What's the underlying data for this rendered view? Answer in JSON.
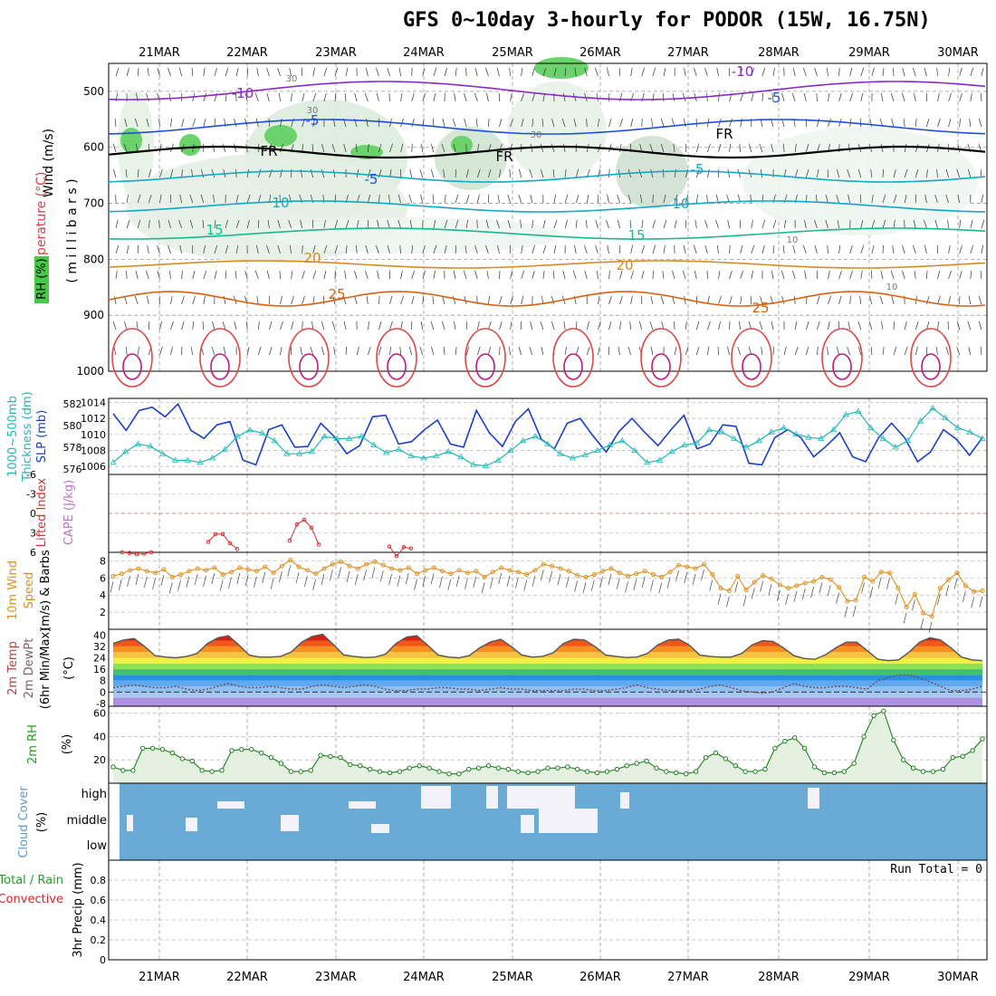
{
  "title": "GFS 0~10day 3-hourly for PODOR (15W, 16.75N)",
  "dates": [
    "21MAR",
    "22MAR",
    "23MAR",
    "24MAR",
    "25MAR",
    "26MAR",
    "27MAR",
    "28MAR",
    "29MAR",
    "30MAR"
  ],
  "colors": {
    "temp_neg": "#1f4fd8",
    "temp_zero": "#000000",
    "temp_cool": "#12a8c8",
    "temp_mild": "#18b890",
    "temp_warm": "#d88a20",
    "temp_hot": "#d86010",
    "slp": "#1a3fc8",
    "thickness": "#20b8b8",
    "lifted_index": "#d83030",
    "wind10m": "#e09020",
    "rh_line": "#208020",
    "cloud": "#6aaad6",
    "precip_total": "#20a020",
    "precip_conv": "#e02020"
  },
  "panels": {
    "upper": {
      "ylabel_wind": "Wind (m/s)",
      "ylabel_temp": "Temperature (°C)",
      "ylabel_rh": "RH (%)",
      "ylabel_units": "( m i l l i b a r s )",
      "pressure_ticks": [
        "500",
        "600",
        "700",
        "800",
        "900",
        "1000"
      ],
      "contour_labels": [
        "-10",
        "-10",
        "-5",
        "-5",
        "FR",
        "FR",
        "FR",
        "-5",
        "-5",
        "10",
        "10",
        "15",
        "15",
        "20",
        "20",
        "25",
        "25",
        "30",
        "30",
        "30",
        "10",
        "10"
      ]
    },
    "slp": {
      "ylabel_left1": "1000~500mb",
      "ylabel_left2": "Thickness (dm)",
      "ylabel_right": "SLP (mb)",
      "left_ticks": [
        "582",
        "580",
        "578",
        "576"
      ],
      "right_ticks": [
        "1014",
        "1012",
        "1010",
        "1008",
        "1006"
      ]
    },
    "cape": {
      "ylabel_left": "Lifted Index",
      "ylabel_right": "CAPE (J/kg)",
      "ticks": [
        "-6",
        "-3",
        "0",
        "3",
        "6"
      ]
    },
    "wind10m": {
      "ylabel_1": "10m Wind",
      "ylabel_2": "Speed",
      "ylabel_3": "(m/s) & Barbs",
      "ticks": [
        "8",
        "6",
        "4",
        "2"
      ]
    },
    "temp2m": {
      "ylabel_1": "2m Temp",
      "ylabel_2": "2m DewPt",
      "ylabel_3": "(6hr Min/Max)",
      "ylabel_unit": "(°C)",
      "ticks": [
        "40",
        "32",
        "24",
        "16",
        "8",
        "0",
        "-8"
      ]
    },
    "rh2m": {
      "ylabel": "2m RH",
      "unit": "(%)",
      "ticks": [
        "60",
        "40",
        "20"
      ]
    },
    "cloud": {
      "ylabel": "Cloud Cover",
      "unit": "(%)",
      "levels": [
        "high",
        "middle",
        "low"
      ]
    },
    "precip": {
      "ylabel_total": "Total / Rain",
      "ylabel_conv": "Convective",
      "ylabel_axis": "3hr Precip (mm)",
      "run_total": "Run Total = 0",
      "ticks": [
        "0.8",
        "0.6",
        "0.4",
        "0.2",
        "0"
      ]
    }
  },
  "chart_data": [
    {
      "type": "line",
      "title": "1000~500mb Thickness (dm) and SLP (mb)",
      "series": [
        {
          "name": "SLP (mb)",
          "axis": "right",
          "values": [
            1012.6,
            1010.5,
            1013,
            1013.4,
            1012.2,
            1013.8,
            1010.5,
            1009.5,
            1011.2,
            1011.6,
            1006.8,
            1006.2,
            1010.6,
            1011.2,
            1008.4,
            1008.5,
            1011.4,
            1009.8,
            1007.6,
            1008.6,
            1012.2,
            1012.4,
            1008.8,
            1009.1,
            1010.6,
            1011.8,
            1008.8,
            1008.4,
            1013,
            1010.2,
            1008.5,
            1011.6,
            1013.2,
            1009.4,
            1008.2,
            1011.4,
            1012,
            1009.8,
            1007.8,
            1010.4,
            1012,
            1010.2,
            1008.6,
            1010.6,
            1012.4,
            1008.2,
            1008.8,
            1011.2,
            1011,
            1006.4,
            1006.2,
            1009.6,
            1010.6,
            1009.6,
            1007.2,
            1008.6,
            1010.2,
            1007.2,
            1006.6,
            1009.6,
            1011.4,
            1009.6,
            1006.6,
            1007.8,
            1010.6,
            1009.4,
            1007.4,
            1009.6
          ]
        },
        {
          "name": "1000~500mb Thickness (dm)",
          "axis": "left",
          "values": [
            576.6,
            577.6,
            578.3,
            578.1,
            577.4,
            576.8,
            576.8,
            576.6,
            577,
            577.8,
            579,
            579.6,
            579.3,
            578.6,
            577.4,
            577.4,
            577.6,
            579,
            578.8,
            578.8,
            579,
            578.2,
            577.5,
            577.8,
            577.2,
            577,
            577.2,
            577.6,
            577.1,
            576.4,
            576.3,
            576.8,
            577.7,
            578.6,
            579,
            578.3,
            577.4,
            577,
            577.3,
            577.7,
            578.2,
            578.6,
            577.7,
            576.6,
            576.8,
            577.6,
            578.2,
            578.4,
            579.6,
            579.4,
            578.8,
            578,
            578.6,
            579.4,
            579.8,
            579.2,
            578.9,
            578.8,
            579.6,
            581,
            581.3,
            579.8,
            578.8,
            578,
            578.6,
            580.4,
            581.6,
            580.7,
            579.8,
            579.4,
            578.8
          ]
        }
      ],
      "ylim_left": [
        575.5,
        582.5
      ],
      "ylim_right": [
        1005,
        1014.5
      ]
    },
    {
      "type": "line",
      "title": "Lifted Index and CAPE (J/kg)",
      "series": [
        {
          "name": "Lifted Index",
          "values_segments": [
            [
              6,
              6.1,
              6.3,
              6.2,
              6
            ],
            [
              4.4,
              3.2,
              3.2,
              4.6,
              5.5
            ],
            [
              4.2,
              1.7,
              1,
              2.2,
              4.8
            ],
            [
              5.1,
              6.6,
              5.2,
              5.4
            ]
          ]
        }
      ],
      "ylim": [
        6,
        -6
      ]
    },
    {
      "type": "line",
      "title": "10m Wind Speed (m/s) & Barbs",
      "series": [
        {
          "name": "10m Wind Speed",
          "values": [
            6.2,
            6.5,
            6.9,
            7.1,
            6.8,
            6.6,
            7,
            6.1,
            6.4,
            6.8,
            7.1,
            6.9,
            7.2,
            6.4,
            6.7,
            7.2,
            7,
            6.8,
            7.3,
            6.6,
            7.4,
            8.1,
            7.3,
            6.9,
            6.5,
            7.1,
            7.6,
            7.9,
            7.4,
            7.1,
            7.6,
            7.9,
            7.5,
            7.1,
            6.9,
            7.2,
            6.5,
            6.9,
            7.2,
            6.8,
            6.5,
            6.9,
            6.6,
            6.8,
            6.1,
            6.7,
            7.2,
            6.9,
            6.7,
            6.4,
            6.9,
            7.6,
            7.4,
            7.1,
            6.8,
            6.3,
            6.1,
            6.4,
            6.8,
            7.1,
            6.6,
            6.2,
            6.5,
            6.8,
            6.4,
            6.1,
            6.7,
            7.5,
            7.3,
            7.1,
            7.6,
            6.4,
            4.8,
            4.5,
            6.2,
            4.6,
            5.5,
            6.3,
            5.9,
            5.2,
            4.8,
            5.1,
            5.4,
            5.6,
            6.1,
            5.8,
            4.9,
            3.3,
            3.4,
            6.1,
            5.6,
            6.7,
            6.6,
            4.8,
            2.6,
            4.1,
            1.9,
            1.5,
            4.8,
            5.8,
            6.6,
            5.1,
            4.4,
            4.5
          ]
        }
      ],
      "ylim": [
        0,
        9
      ]
    },
    {
      "type": "area",
      "title": "2m Temp and 2m DewPt (°C)",
      "series": [
        {
          "name": "2m Temp",
          "values": [
            34,
            36.5,
            37.5,
            32,
            25.5,
            24.5,
            24,
            25,
            27,
            34,
            38,
            39.5,
            33,
            25.8,
            24.5,
            24.5,
            25,
            28,
            35,
            39,
            40.5,
            33.5,
            26,
            25,
            24.2,
            24.5,
            26.5,
            34,
            38.5,
            39.5,
            33,
            26,
            24.5,
            24,
            25.5,
            31,
            35,
            37,
            32,
            26,
            24.5,
            25,
            27.5,
            34,
            37,
            36.5,
            32,
            26,
            25,
            24.2,
            24.5,
            27,
            33,
            36.5,
            37,
            33,
            26,
            25,
            24.5,
            24.5,
            27,
            33,
            36,
            35.5,
            31,
            25.5,
            23.5,
            23,
            26,
            31,
            35,
            35,
            29,
            23,
            22,
            22.5,
            28,
            35,
            38,
            36.5,
            31,
            24.5,
            22.5,
            22
          ]
        },
        {
          "name": "2m DewPt",
          "values": [
            3,
            4,
            5,
            4,
            3,
            3,
            4,
            2,
            1,
            2,
            4,
            6,
            4,
            3,
            3,
            4,
            3,
            2,
            2,
            4,
            5,
            4,
            3,
            4,
            5,
            4,
            2,
            1,
            1,
            2,
            2,
            3,
            3,
            2,
            2,
            1,
            2,
            3,
            2,
            2,
            1,
            1,
            1,
            1,
            2,
            2,
            1,
            1,
            2,
            3,
            5,
            3,
            2,
            1,
            1,
            1,
            2,
            4,
            5,
            3,
            1,
            0,
            -1,
            0,
            3,
            6,
            4,
            3,
            3,
            4,
            4,
            3,
            2,
            8,
            10,
            12,
            12,
            10,
            7,
            4,
            1,
            1,
            2,
            4
          ]
        }
      ],
      "ylim": [
        -10,
        44
      ]
    },
    {
      "type": "area",
      "title": "2m RH (%)",
      "series": [
        {
          "name": "2m RH",
          "values": [
            14,
            11,
            11,
            30,
            30,
            29,
            26,
            21,
            19,
            11,
            10,
            11,
            28,
            29,
            29,
            26,
            22,
            17,
            10,
            10,
            11,
            24,
            23,
            22,
            16,
            15,
            12,
            10,
            9,
            10,
            13,
            15,
            13,
            10,
            8,
            8,
            12,
            13,
            15,
            13,
            12,
            10,
            9,
            10,
            13,
            13,
            14,
            12,
            10,
            9,
            10,
            12,
            15,
            17,
            19,
            13,
            10,
            9,
            8,
            10,
            22,
            26,
            21,
            15,
            10,
            10,
            12,
            30,
            36,
            39,
            30,
            14,
            9,
            9,
            10,
            17,
            40,
            58,
            62,
            37,
            20,
            13,
            10,
            10,
            12,
            22,
            23,
            28,
            38
          ]
        }
      ],
      "ylim": [
        0,
        66
      ]
    },
    {
      "type": "table",
      "title": "Cloud Cover (%)",
      "rows": [
        "high",
        "middle",
        "low"
      ],
      "values": "mostly 100% (blue), with gaps of clear sky (white) in high and middle layers around 23–26 MAR"
    },
    {
      "type": "bar",
      "title": "3hr Precip (mm)",
      "values": [],
      "ylim": [
        0,
        1
      ]
    }
  ]
}
